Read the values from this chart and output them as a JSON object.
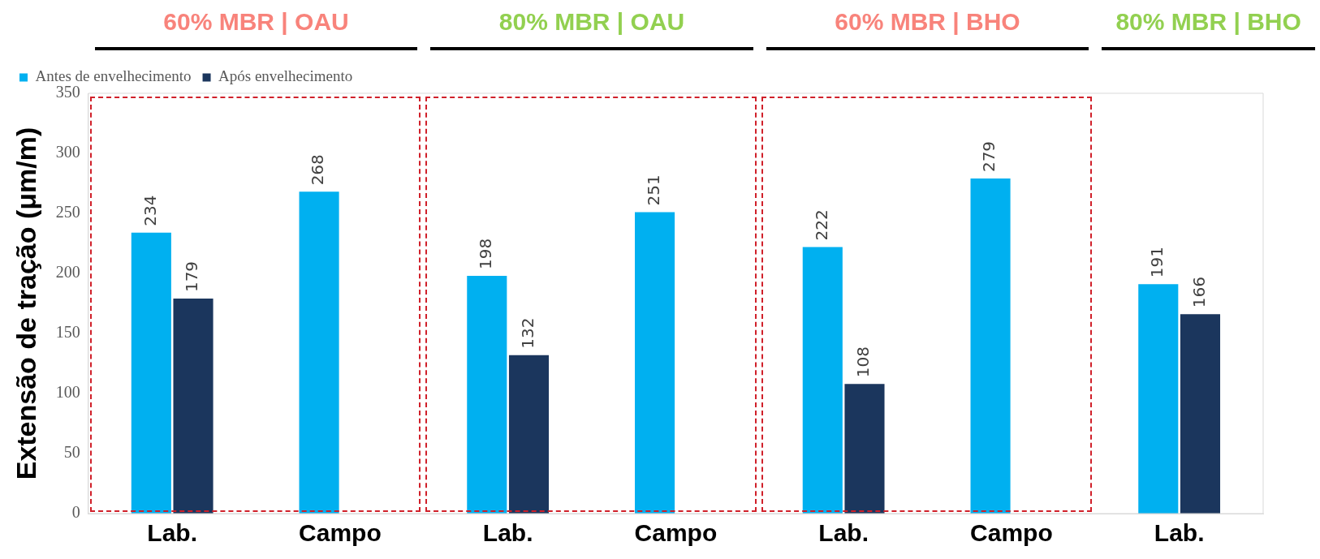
{
  "chart_data": {
    "type": "bar",
    "ylabel": "Extensão de tração (μm/m)",
    "categories": [
      "Lab.",
      "Campo",
      "Lab.",
      "Campo",
      "Lab.",
      "Campo",
      "Lab."
    ],
    "series": [
      {
        "name": "Antes de envelhecimento",
        "color": "#00b0f0",
        "values": [
          234,
          268,
          198,
          251,
          222,
          279,
          191
        ]
      },
      {
        "name": "Após envelhecimento",
        "color": "#1b365d",
        "values": [
          179,
          null,
          132,
          null,
          108,
          null,
          166
        ]
      }
    ],
    "ylim": [
      0,
      350
    ],
    "yticks": [
      0,
      50,
      100,
      150,
      200,
      250,
      300,
      350
    ],
    "annotations": [
      "60% MBR | OAU",
      "80% MBR | OAU",
      "60% MBR | BHO",
      "80% MBR | BHO"
    ],
    "data_labels": true,
    "grid": false,
    "legend": "top left"
  }
}
